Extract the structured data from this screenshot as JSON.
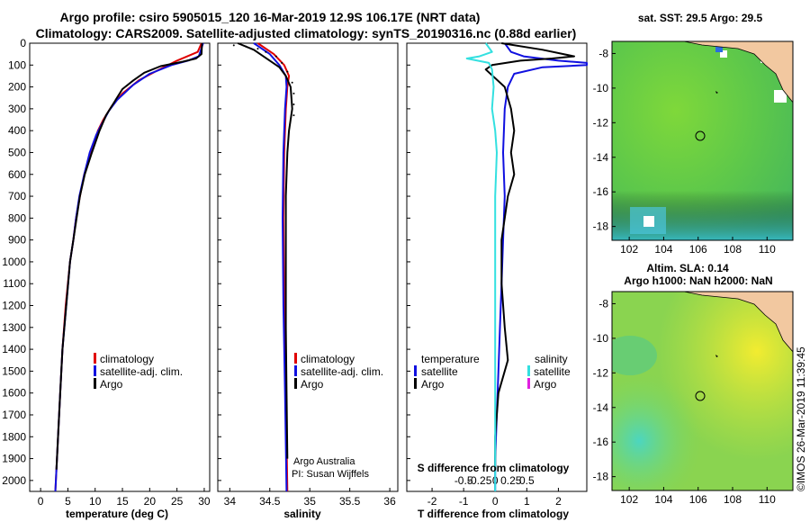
{
  "header": {
    "title_line1": "Argo profile: csiro 5905015_120 16-Mar-2019 12.9S 106.17E (NRT data)",
    "title_line2": "Climatology: CARS2009. Satellite-adjusted climatology: synTS_20190316.nc (0.88d earlier)"
  },
  "depth_ticks": [
    "0",
    "100",
    "200",
    "300",
    "400",
    "500",
    "600",
    "700",
    "800",
    "900",
    "1000",
    "1100",
    "1200",
    "1300",
    "1400",
    "1500",
    "1600",
    "1700",
    "1800",
    "1900",
    "2000"
  ],
  "colors": {
    "climatology": "#e00000",
    "satellite": "#1010e0",
    "argo": "#000000",
    "sat_salinity": "#33e0e0",
    "argo_salinity_diff": "#e020e0",
    "land": "#f2c8a0"
  },
  "chart_data": [
    {
      "type": "line",
      "xlabel": "temperature (deg C)",
      "x_ticks": [
        "0",
        "5",
        "10",
        "15",
        "20",
        "25",
        "30"
      ],
      "xlim": [
        -2,
        31
      ],
      "ylim": [
        2050,
        0
      ],
      "legend": [
        "climatology",
        "satellite-adj. clim.",
        "Argo"
      ],
      "series": [
        {
          "name": "climatology",
          "points": [
            [
              29.5,
              0
            ],
            [
              28.8,
              40
            ],
            [
              25,
              80
            ],
            [
              21,
              130
            ],
            [
              18,
              170
            ],
            [
              15,
              230
            ],
            [
              13,
              290
            ],
            [
              11.5,
              350
            ],
            [
              10.5,
              400
            ],
            [
              9.2,
              500
            ],
            [
              8,
              600
            ],
            [
              7.2,
              700
            ],
            [
              6.5,
              800
            ],
            [
              6,
              900
            ],
            [
              5.4,
              1000
            ],
            [
              4.6,
              1200
            ],
            [
              4,
              1400
            ],
            [
              3.6,
              1600
            ],
            [
              3.2,
              1800
            ],
            [
              2.9,
              1950
            ],
            [
              2.7,
              2050
            ]
          ]
        },
        {
          "name": "satellite-adj. clim.",
          "points": [
            [
              29.8,
              0
            ],
            [
              29,
              60
            ],
            [
              27,
              80
            ],
            [
              24,
              100
            ],
            [
              20,
              140
            ],
            [
              17,
              190
            ],
            [
              14,
              260
            ],
            [
              12.5,
              310
            ],
            [
              11,
              380
            ],
            [
              10.2,
              420
            ],
            [
              9,
              500
            ],
            [
              8,
              600
            ],
            [
              7.1,
              700
            ],
            [
              6.5,
              800
            ],
            [
              6,
              900
            ],
            [
              5.4,
              1000
            ],
            [
              4.7,
              1200
            ],
            [
              4,
              1400
            ],
            [
              3.6,
              1600
            ],
            [
              3.2,
              1800
            ],
            [
              2.9,
              1950
            ],
            [
              2.7,
              2050
            ]
          ]
        },
        {
          "name": "Argo",
          "points": [
            [
              29.6,
              0
            ],
            [
              29.5,
              50
            ],
            [
              28.5,
              70
            ],
            [
              26,
              85
            ],
            [
              22,
              105
            ],
            [
              19,
              135
            ],
            [
              17,
              170
            ],
            [
              15,
              210
            ],
            [
              13.5,
              270
            ],
            [
              12,
              330
            ],
            [
              10.8,
              400
            ],
            [
              9.4,
              500
            ],
            [
              8.1,
              600
            ],
            [
              7.2,
              700
            ],
            [
              6.6,
              800
            ],
            [
              6,
              900
            ],
            [
              5.4,
              1000
            ],
            [
              4.7,
              1200
            ],
            [
              4,
              1400
            ],
            [
              3.6,
              1600
            ],
            [
              3.2,
              1800
            ],
            [
              2.9,
              1950
            ]
          ]
        }
      ]
    },
    {
      "type": "line",
      "xlabel": "salinity",
      "x_ticks": [
        "34",
        "34.5",
        "35",
        "35.5",
        "36"
      ],
      "xlim": [
        33.85,
        36.1
      ],
      "ylim": [
        2050,
        0
      ],
      "legend": [
        "climatology",
        "satellite-adj. clim.",
        "Argo"
      ],
      "annotations": [
        "Argo Australia",
        "PI: Susan Wijffels"
      ],
      "series": [
        {
          "name": "climatology",
          "points": [
            [
              34.35,
              0
            ],
            [
              34.55,
              50
            ],
            [
              34.68,
              100
            ],
            [
              34.74,
              150
            ],
            [
              34.72,
              200
            ],
            [
              34.7,
              300
            ],
            [
              34.68,
              500
            ],
            [
              34.67,
              800
            ],
            [
              34.68,
              1200
            ],
            [
              34.7,
              1600
            ],
            [
              34.72,
              2050
            ]
          ]
        },
        {
          "name": "satellite-adj. clim.",
          "points": [
            [
              34.3,
              0
            ],
            [
              34.5,
              50
            ],
            [
              34.62,
              100
            ],
            [
              34.7,
              150
            ],
            [
              34.71,
              200
            ],
            [
              34.69,
              300
            ],
            [
              34.67,
              500
            ],
            [
              34.66,
              800
            ],
            [
              34.67,
              1200
            ],
            [
              34.69,
              1600
            ],
            [
              34.71,
              2050
            ]
          ]
        },
        {
          "name": "Argo",
          "points": [
            [
              34.1,
              0
            ],
            [
              34.3,
              30
            ],
            [
              34.5,
              80
            ],
            [
              34.62,
              110
            ],
            [
              34.7,
              150
            ],
            [
              34.76,
              200
            ],
            [
              34.78,
              300
            ],
            [
              34.74,
              400
            ],
            [
              34.72,
              500
            ],
            [
              34.7,
              700
            ],
            [
              34.7,
              1000
            ],
            [
              34.7,
              1300
            ],
            [
              34.71,
              1600
            ],
            [
              34.72,
              1900
            ]
          ]
        }
      ]
    },
    {
      "type": "line",
      "xlabel": "T difference from climatology",
      "x_ticks": [
        "-2",
        "-1",
        "0",
        "1",
        "2"
      ],
      "x2label": "S difference from climatology",
      "x2_ticks": [
        "-0.5",
        "-0.25",
        "0",
        "0.25",
        "0.5"
      ],
      "xlim": [
        -2.8,
        2.9
      ],
      "ylim": [
        2050,
        0
      ],
      "legend_temperature": [
        "temperature",
        "satellite",
        "Argo"
      ],
      "legend_salinity": [
        "salinity",
        "satellite",
        "Argo"
      ],
      "series": [
        {
          "name": "satellite",
          "points": [
            [
              0.3,
              0
            ],
            [
              0.5,
              40
            ],
            [
              0.9,
              60
            ],
            [
              2,
              80
            ],
            [
              2.9,
              90
            ],
            [
              2.9,
              100
            ],
            [
              1.5,
              110
            ],
            [
              0.6,
              140
            ],
            [
              0.4,
              200
            ],
            [
              0.3,
              300
            ],
            [
              0.25,
              500
            ],
            [
              0.3,
              700
            ],
            [
              0.25,
              900
            ],
            [
              0.2,
              1100
            ],
            [
              0.15,
              1300
            ],
            [
              0.1,
              1500
            ],
            [
              0.05,
              1700
            ],
            [
              0,
              1900
            ],
            [
              0,
              2050
            ]
          ]
        },
        {
          "name": "Argo",
          "points": [
            [
              0.2,
              0
            ],
            [
              1.5,
              30
            ],
            [
              2.5,
              60
            ],
            [
              1.8,
              70
            ],
            [
              0.8,
              80
            ],
            [
              -0.1,
              100
            ],
            [
              -0.3,
              120
            ],
            [
              0.3,
              200
            ],
            [
              0.5,
              300
            ],
            [
              0.6,
              400
            ],
            [
              0.5,
              500
            ],
            [
              0.6,
              600
            ],
            [
              0.4,
              700
            ],
            [
              0.3,
              800
            ],
            [
              0.2,
              900
            ],
            [
              0.2,
              1100
            ],
            [
              0.3,
              1300
            ],
            [
              0.4,
              1450
            ],
            [
              0.1,
              1600
            ],
            [
              0,
              1800
            ],
            [
              0,
              1950
            ]
          ]
        },
        {
          "name": "satellite salinity",
          "points": [
            [
              -0.3,
              0
            ],
            [
              -0.1,
              40
            ],
            [
              -0.5,
              60
            ],
            [
              -0.9,
              70
            ],
            [
              -0.2,
              90
            ],
            [
              -0.1,
              120
            ],
            [
              -0.05,
              200
            ],
            [
              -0.1,
              300
            ],
            [
              0,
              400
            ],
            [
              0.05,
              500
            ],
            [
              0,
              700
            ],
            [
              0,
              1000
            ],
            [
              0,
              1300
            ],
            [
              0,
              1600
            ],
            [
              0,
              1900
            ],
            [
              0,
              2050
            ]
          ]
        }
      ]
    }
  ],
  "map_top": {
    "title": "sat. SST: 29.5 Argo: 29.5",
    "x_ticks": [
      "102",
      "104",
      "106",
      "108",
      "110"
    ],
    "y_ticks": [
      "-8",
      "-10",
      "-12",
      "-14",
      "-16",
      "-18"
    ]
  },
  "map_bottom": {
    "title_line1": "Altim. SLA: 0.14",
    "title_line2": "Argo h1000: NaN h2000: NaN",
    "x_ticks": [
      "102",
      "104",
      "106",
      "108",
      "110"
    ],
    "y_ticks": [
      "-8",
      "-10",
      "-12",
      "-14",
      "-16",
      "-18"
    ]
  },
  "credit": "©IMOS 26-Mar-2019 11:39:45"
}
